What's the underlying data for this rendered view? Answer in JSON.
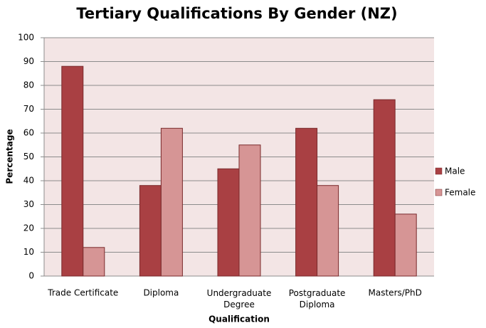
{
  "chart_data": {
    "type": "bar",
    "title": "Tertiary Qualifications By Gender (NZ)",
    "x_label": "Qualification",
    "y_label": "Percentage",
    "categories": [
      "Trade Certificate",
      "Diploma",
      "Undergraduate\nDegree",
      "Postgraduate\nDiploma",
      "Masters/PhD"
    ],
    "series": [
      {
        "name": "Male",
        "color": "#a94043",
        "values": [
          88,
          38,
          45,
          62,
          74
        ]
      },
      {
        "name": "Female",
        "color": "#d69595",
        "values": [
          12,
          62,
          55,
          38,
          26
        ]
      }
    ],
    "ylim": [
      0,
      100
    ],
    "yticks": [
      0,
      10,
      20,
      30,
      40,
      50,
      60,
      70,
      80,
      90,
      100
    ],
    "grid": true,
    "legend": "right"
  }
}
